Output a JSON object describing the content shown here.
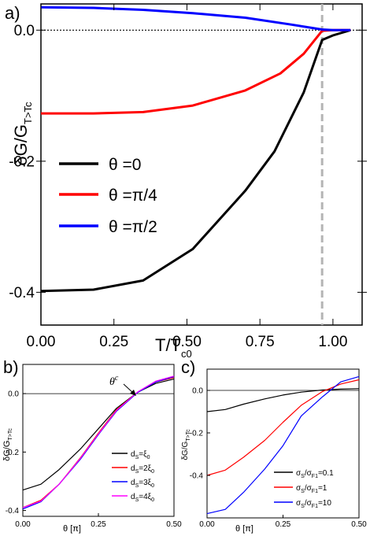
{
  "chart_data": [
    {
      "type": "line",
      "panel_label": "a)",
      "ylabel": "δG/G",
      "ylabel_sub": "T>Tc",
      "xlabel": "T/T",
      "xlabel_sub": "c0",
      "xlim": [
        0.0,
        1.1
      ],
      "ylim": [
        -0.45,
        0.04
      ],
      "xticks": [
        0.0,
        0.25,
        0.5,
        0.75,
        1.0
      ],
      "xtick_labels": [
        "0.00",
        "0.25",
        "0.50",
        "0.75",
        "1.00"
      ],
      "yticks": [
        0.0,
        -0.2,
        -0.4
      ],
      "ytick_labels": [
        "0.0",
        "-0.2",
        "-0.4"
      ],
      "reference_line_y": 0.0,
      "vertical_marker_x": 0.963,
      "legend_position": "center-left",
      "series": [
        {
          "name": "θ =0",
          "color": "#000000",
          "x": [
            0.0,
            0.18,
            0.35,
            0.52,
            0.7,
            0.8,
            0.9,
            0.963,
            1.0,
            1.06
          ],
          "y": [
            -0.398,
            -0.396,
            -0.382,
            -0.334,
            -0.245,
            -0.185,
            -0.095,
            -0.015,
            -0.008,
            0.0
          ]
        },
        {
          "name": "θ =π/4",
          "color": "#ff0000",
          "x": [
            0.0,
            0.18,
            0.35,
            0.52,
            0.7,
            0.82,
            0.9,
            0.963,
            1.0,
            1.06
          ],
          "y": [
            -0.127,
            -0.127,
            -0.125,
            -0.115,
            -0.092,
            -0.066,
            -0.036,
            -0.001,
            0.0,
            0.0
          ]
        },
        {
          "name": "θ =π/2",
          "color": "#0000ff",
          "x": [
            0.0,
            0.18,
            0.35,
            0.52,
            0.7,
            0.85,
            0.963,
            1.0,
            1.06
          ],
          "y": [
            0.035,
            0.034,
            0.031,
            0.026,
            0.019,
            0.009,
            0.001,
            0.0,
            0.0
          ]
        }
      ]
    },
    {
      "type": "line",
      "panel_label": "b)",
      "ylabel": "δG/G",
      "ylabel_sub": "T>Tc",
      "xlabel": "θ  [π]",
      "xlim": [
        0.0,
        0.5
      ],
      "ylim": [
        -0.42,
        0.1
      ],
      "xticks": [
        0.0,
        0.25,
        0.5
      ],
      "xtick_labels": [
        "0.00",
        "0.25",
        "0.50"
      ],
      "yticks": [
        0.0,
        -0.2,
        -0.4
      ],
      "ytick_labels": [
        "0.0",
        "-0.2",
        "-0.4"
      ],
      "reference_line_y": 0.0,
      "annotation": "θ",
      "annotation_sup": "c",
      "annotation_point": [
        0.38,
        0.0
      ],
      "legend_position": "bottom-right",
      "series": [
        {
          "name": "d",
          "name_sub": "S",
          "name_tail": "=ξ",
          "name_tail_sub": "0",
          "color": "#000000",
          "x": [
            0.0,
            0.06,
            0.12,
            0.19,
            0.25,
            0.31,
            0.38,
            0.44,
            0.5
          ],
          "y": [
            -0.33,
            -0.31,
            -0.26,
            -0.19,
            -0.12,
            -0.05,
            0.005,
            0.035,
            0.05
          ]
        },
        {
          "name": "d",
          "name_sub": "S",
          "name_tail": "=2ξ",
          "name_tail_sub": "0",
          "color": "#ff0000",
          "x": [
            0.0,
            0.06,
            0.12,
            0.19,
            0.25,
            0.31,
            0.38,
            0.44,
            0.5
          ],
          "y": [
            -0.39,
            -0.365,
            -0.31,
            -0.22,
            -0.135,
            -0.055,
            0.005,
            0.04,
            0.055
          ]
        },
        {
          "name": "d",
          "name_sub": "S",
          "name_tail": "=3ξ",
          "name_tail_sub": "0",
          "color": "#0000ff",
          "x": [
            0.0,
            0.06,
            0.12,
            0.19,
            0.25,
            0.31,
            0.38,
            0.44,
            0.5
          ],
          "y": [
            -0.395,
            -0.37,
            -0.31,
            -0.225,
            -0.14,
            -0.06,
            0.004,
            0.04,
            0.058
          ]
        },
        {
          "name": "d",
          "name_sub": "S",
          "name_tail": "=4ξ",
          "name_tail_sub": "0",
          "color": "#ff00ff",
          "x": [
            0.0,
            0.06,
            0.12,
            0.19,
            0.25,
            0.31,
            0.38,
            0.44,
            0.5
          ],
          "y": [
            -0.39,
            -0.368,
            -0.31,
            -0.222,
            -0.138,
            -0.058,
            0.006,
            0.043,
            0.06
          ]
        }
      ]
    },
    {
      "type": "line",
      "panel_label": "c)",
      "ylabel": "δG/G",
      "ylabel_sub": "T>Tc",
      "xlabel": "θ  [π]",
      "xlim": [
        0.0,
        0.5
      ],
      "ylim": [
        -0.6,
        0.1
      ],
      "xticks": [
        0.0,
        0.25,
        0.5
      ],
      "xtick_labels": [
        "0.00",
        "0.25",
        "0.50"
      ],
      "yticks": [
        0.0,
        -0.2,
        -0.4
      ],
      "ytick_labels": [
        "0.0",
        "-0.2",
        "-0.4"
      ],
      "reference_line_y": 0.0,
      "legend_position": "bottom-right",
      "series": [
        {
          "name": "σ",
          "name_sub": "S",
          "name_tail": "/σ",
          "name_tail_sub": "F1",
          "name_end": "=0.1",
          "color": "#000000",
          "x": [
            0.0,
            0.06,
            0.12,
            0.19,
            0.25,
            0.31,
            0.38,
            0.44,
            0.5
          ],
          "y": [
            -0.1,
            -0.09,
            -0.065,
            -0.04,
            -0.022,
            -0.008,
            0.002,
            0.006,
            0.008
          ]
        },
        {
          "name": "σ",
          "name_sub": "S",
          "name_tail": "/σ",
          "name_tail_sub": "F1",
          "name_end": "=1",
          "color": "#ff0000",
          "x": [
            0.0,
            0.06,
            0.12,
            0.19,
            0.25,
            0.31,
            0.38,
            0.44,
            0.5
          ],
          "y": [
            -0.4,
            -0.375,
            -0.315,
            -0.235,
            -0.15,
            -0.07,
            -0.005,
            0.03,
            0.05
          ]
        },
        {
          "name": "σ",
          "name_sub": "S",
          "name_tail": "/σ",
          "name_tail_sub": "F1",
          "name_end": "=10",
          "color": "#0000ff",
          "x": [
            0.0,
            0.06,
            0.12,
            0.19,
            0.25,
            0.31,
            0.38,
            0.44,
            0.5
          ],
          "y": [
            -0.58,
            -0.56,
            -0.48,
            -0.37,
            -0.26,
            -0.12,
            -0.03,
            0.04,
            0.065
          ]
        }
      ]
    }
  ]
}
